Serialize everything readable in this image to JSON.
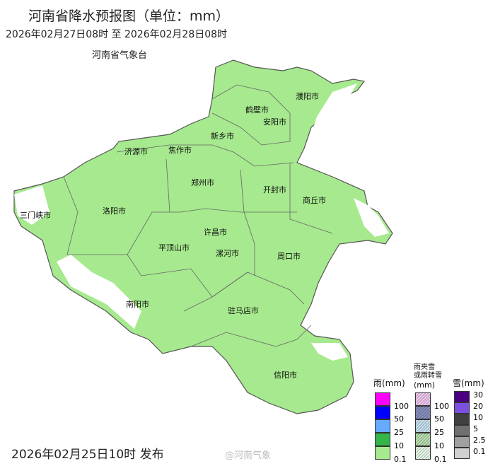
{
  "title": "河南省降水预报图（单位：mm）",
  "period": "2026年02月27日08时  至  2026年02月28日08时",
  "org": "河南省气象台",
  "issued": "2026年02月25日10时 发布",
  "watermark": "@河南气象",
  "colors": {
    "land": "#a6e98e",
    "border": "#555"
  },
  "cities": [
    "濮阳市",
    "鹤壁市",
    "安阳市",
    "新乡市",
    "济源市",
    "焦作市",
    "郑州市",
    "开封市",
    "商丘市",
    "三门峡市",
    "洛阳市",
    "许昌市",
    "平顶山市",
    "漯河市",
    "周口市",
    "南阳市",
    "驻马店市",
    "信阳市"
  ],
  "legend": {
    "rain": {
      "title": "雨(mm)",
      "colors": [
        "#ff00ff",
        "#0000ff",
        "#66aaff",
        "#33b54a",
        "#a6e98e"
      ],
      "labels": [
        "100",
        "50",
        "25",
        "10",
        "0.1"
      ]
    },
    "mix": {
      "title": "雨夹雪\n或雨转雪",
      "unit": "(mm)",
      "colors": [
        "#f0c8f0",
        "#8890c0",
        "#c8e0f0",
        "#b8e0b0",
        "#e8f8e8"
      ],
      "labels": [
        "100",
        "50",
        "25",
        "10",
        "0.1"
      ]
    },
    "snow": {
      "title": "雪(mm)",
      "colors": [
        "#4b0082",
        "#7b50e0",
        "#404040",
        "#707070",
        "#a0a0a0",
        "#d0d0d0"
      ],
      "labels": [
        "30",
        "20",
        "10",
        "5",
        "2.5",
        "0.1"
      ]
    }
  }
}
